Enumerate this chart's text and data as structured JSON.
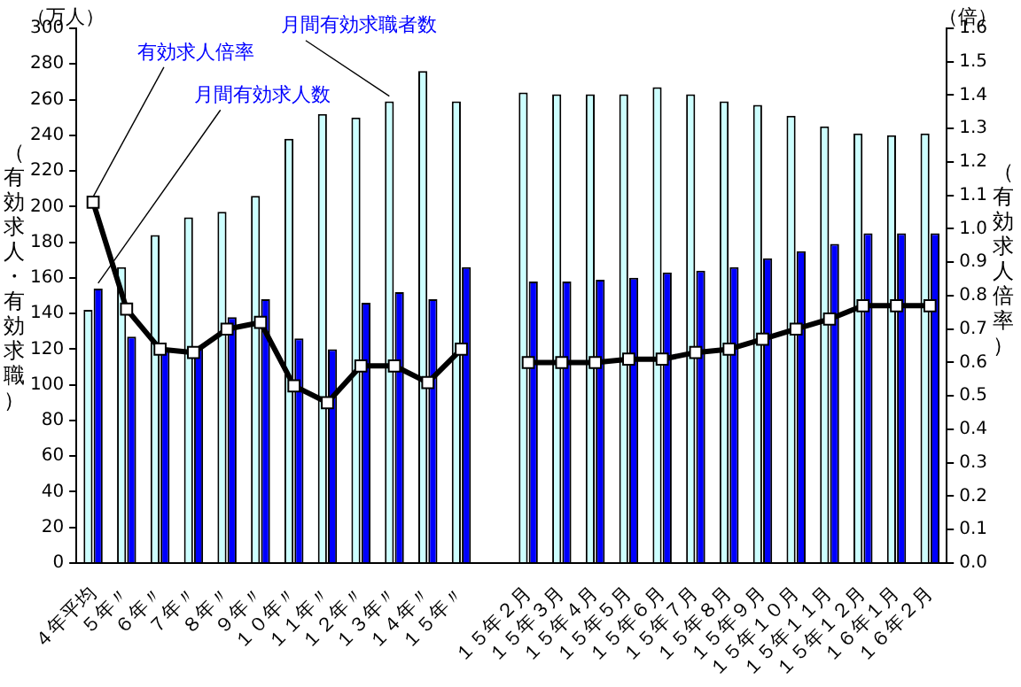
{
  "chart_data": {
    "type": "bar",
    "categories": [
      "４年平均",
      "５年〃",
      "６年〃",
      "７年〃",
      "８年〃",
      "９年〃",
      "１０年〃",
      "１１年〃",
      "１２年〃",
      "１３年〃",
      "１４年〃",
      "１５年〃",
      null,
      "１５年２月",
      "１５年３月",
      "１５年４月",
      "１５年５月",
      "１５年６月",
      "１５年７月",
      "１５年８月",
      "１５年９月",
      "１５年１０月",
      "１５年１１月",
      "１５年１２月",
      "１６年１月",
      "１６年２月"
    ],
    "series": [
      {
        "name": "月間有効求職者数",
        "color": "#ccffff",
        "values": [
          142,
          166,
          184,
          194,
          197,
          206,
          238,
          252,
          250,
          259,
          276,
          259,
          null,
          264,
          263,
          263,
          263,
          267,
          263,
          259,
          257,
          251,
          245,
          241,
          240,
          241
        ]
      },
      {
        "name": "月間有効求人数",
        "color": "#0000ff",
        "values": [
          154,
          127,
          119,
          121,
          138,
          148,
          126,
          120,
          146,
          152,
          148,
          166,
          null,
          158,
          158,
          159,
          160,
          163,
          164,
          166,
          171,
          175,
          179,
          185,
          185,
          185
        ]
      },
      {
        "name": "有効求人倍率",
        "type": "line",
        "axis": "y2",
        "color": "#000000",
        "marker": "square",
        "values": [
          1.08,
          0.76,
          0.64,
          0.63,
          0.7,
          0.72,
          0.53,
          0.48,
          0.59,
          0.59,
          0.54,
          0.64,
          null,
          0.6,
          0.6,
          0.6,
          0.61,
          0.61,
          0.63,
          0.64,
          0.67,
          0.7,
          0.73,
          0.77,
          0.77,
          0.77
        ]
      }
    ],
    "ylabel": "（有効求人・有効求職）",
    "y2label": "（有効求人倍率）",
    "annotations": [
      "（万人）",
      "（倍）"
    ],
    "ylim": [
      0,
      300
    ],
    "yticks": [
      0,
      20,
      40,
      60,
      80,
      100,
      120,
      140,
      160,
      180,
      200,
      220,
      240,
      260,
      280,
      300
    ],
    "y2lim": [
      0,
      1.6
    ],
    "y2ticks": [
      {
        "value": 0,
        "label": "0.0"
      },
      0.1,
      0.2,
      0.3,
      0.4,
      0.5,
      0.6,
      0.7,
      0.8,
      0.9,
      {
        "value": 1,
        "label": "1.0"
      },
      1.1,
      1.2,
      1.3,
      1.4,
      1.5,
      1.6
    ],
    "grid": false,
    "legend": false
  }
}
